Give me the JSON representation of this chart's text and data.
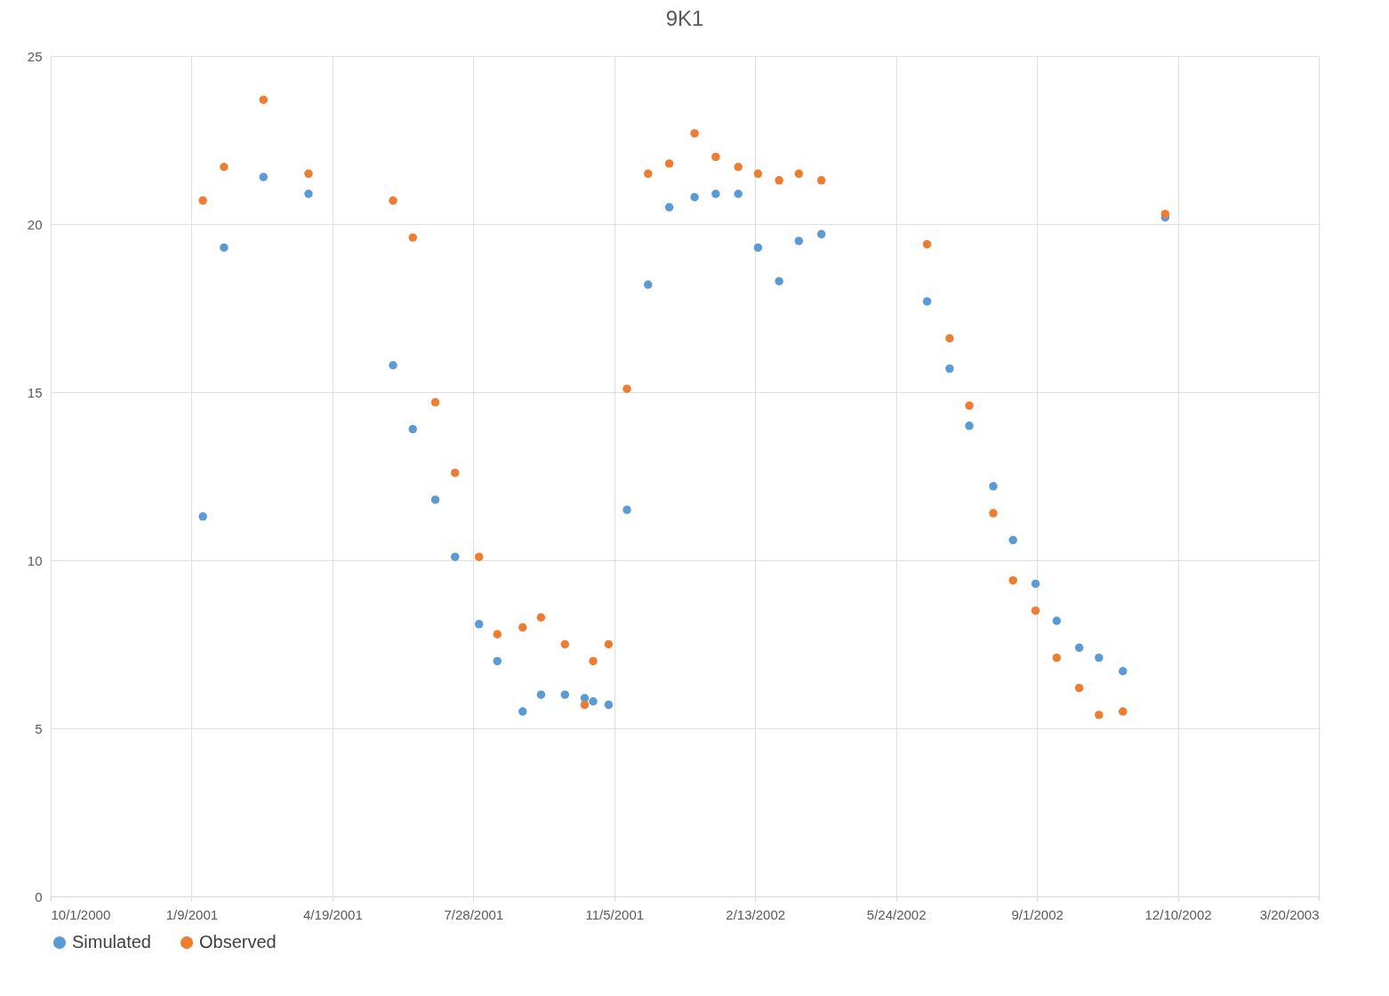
{
  "chart_data": {
    "type": "scatter",
    "title": "9K1",
    "x": [
      "2001-01-17",
      "2001-02-01",
      "2001-03-01",
      "2001-04-02",
      "2001-06-01",
      "2001-06-15",
      "2001-07-01",
      "2001-07-15",
      "2001-08-01",
      "2001-08-14",
      "2001-09-01",
      "2001-09-14",
      "2001-10-01",
      "2001-10-15",
      "2001-10-21",
      "2001-11-01",
      "2001-11-14",
      "2001-11-29",
      "2001-12-14",
      "2002-01-01",
      "2002-01-16",
      "2002-02-01",
      "2002-02-15",
      "2002-03-02",
      "2002-03-16",
      "2002-04-01",
      "2002-06-15",
      "2002-07-01",
      "2002-07-15",
      "2002-08-01",
      "2002-08-15",
      "2002-08-31",
      "2002-09-15",
      "2002-10-01",
      "2002-10-15",
      "2002-11-01",
      "2002-12-01"
    ],
    "series": [
      {
        "name": "Simulated",
        "color": "#5b9bd5",
        "values": [
          11.3,
          19.3,
          21.4,
          20.9,
          15.8,
          13.9,
          11.8,
          10.1,
          8.1,
          7.0,
          5.5,
          6.0,
          6.0,
          5.9,
          5.8,
          5.7,
          11.5,
          18.2,
          20.5,
          20.8,
          20.9,
          20.9,
          19.3,
          18.3,
          19.5,
          19.7,
          17.7,
          15.7,
          14.0,
          12.2,
          10.6,
          9.3,
          8.2,
          7.4,
          7.1,
          6.7,
          20.2
        ]
      },
      {
        "name": "Observed",
        "color": "#ed7d31",
        "values": [
          20.7,
          21.7,
          23.7,
          21.5,
          20.7,
          19.6,
          14.7,
          12.6,
          10.1,
          7.8,
          8.0,
          8.3,
          7.5,
          5.7,
          7.0,
          7.5,
          15.1,
          21.5,
          21.8,
          22.7,
          22.0,
          21.7,
          21.5,
          21.3,
          21.5,
          21.3,
          19.4,
          16.6,
          14.6,
          11.4,
          9.4,
          8.5,
          7.1,
          6.2,
          5.4,
          5.5,
          20.3
        ]
      }
    ],
    "xlim": [
      "2000-10-01",
      "2003-03-20"
    ],
    "xticks": [
      {
        "value": "2000-10-01",
        "label": "10/1/2000"
      },
      {
        "value": "2001-01-09",
        "label": "1/9/2001"
      },
      {
        "value": "2001-04-19",
        "label": "4/19/2001"
      },
      {
        "value": "2001-07-28",
        "label": "7/28/2001"
      },
      {
        "value": "2001-11-05",
        "label": "11/5/2001"
      },
      {
        "value": "2002-02-13",
        "label": "2/13/2002"
      },
      {
        "value": "2002-05-24",
        "label": "5/24/2002"
      },
      {
        "value": "2002-09-01",
        "label": "9/1/2002"
      },
      {
        "value": "2002-12-10",
        "label": "12/10/2002"
      },
      {
        "value": "2003-03-20",
        "label": "3/20/2003"
      }
    ],
    "ylim": [
      0,
      25
    ],
    "yticks": [
      0,
      5,
      10,
      15,
      20,
      25
    ],
    "grid": true,
    "legend": "bottom",
    "marker": "circle"
  }
}
